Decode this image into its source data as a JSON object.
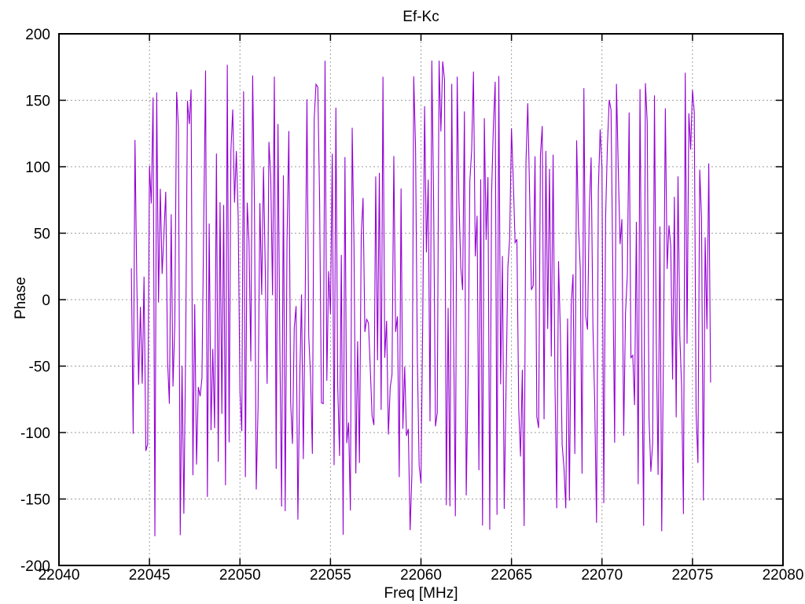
{
  "page": {
    "background_color": "#ffffff",
    "text_color": "#000000"
  },
  "chart_data": {
    "type": "line",
    "title": "Ef-Kc",
    "xlabel": "Freq [MHz]",
    "ylabel": "Phase",
    "xlim": [
      22040,
      22080
    ],
    "ylim": [
      -200,
      200
    ],
    "x_ticks": [
      22040,
      22045,
      22050,
      22055,
      22060,
      22065,
      22070,
      22075,
      22080
    ],
    "y_ticks": [
      -200,
      -150,
      -100,
      -50,
      0,
      50,
      100,
      150,
      200
    ],
    "grid": true,
    "grid_style": "dotted",
    "legend_position": "none",
    "line_color": "#9400d3",
    "grid_color": "#9e9e9e",
    "axis_color": "#000000",
    "series": [
      {
        "name": "Ef-Kc",
        "description": "wrapped interferometric phase vs frequency; uniform random noise between -180 and 180 degrees",
        "x_start": 22044.0,
        "x_end": 22076.0,
        "x_step": 0.1,
        "n_points": 321,
        "y_min": -180,
        "y_max": 180,
        "prng": "mulberry32",
        "seed": 97
      }
    ]
  }
}
